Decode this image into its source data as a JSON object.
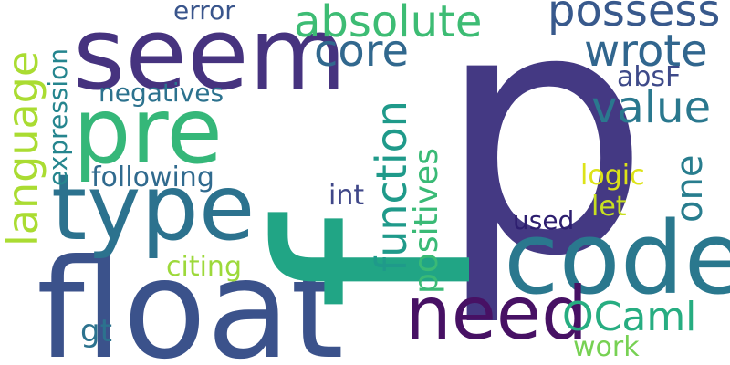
{
  "words": [
    {
      "text": "p",
      "color": "#443983"
    },
    {
      "text": "f",
      "color": "#21a585"
    },
    {
      "text": "float",
      "color": "#3b528b"
    },
    {
      "text": "seem",
      "color": "#46337f"
    },
    {
      "text": "code",
      "color": "#2a788e"
    },
    {
      "text": "pre",
      "color": "#35b779"
    },
    {
      "text": "type",
      "color": "#2c728e"
    },
    {
      "text": "need",
      "color": "#471164"
    },
    {
      "text": "absolute",
      "color": "#3dbc74"
    },
    {
      "text": "possess",
      "color": "#38598c"
    },
    {
      "text": "wrote",
      "color": "#31668e"
    },
    {
      "text": "core",
      "color": "#31688e"
    },
    {
      "text": "value",
      "color": "#2a788e"
    },
    {
      "text": "language",
      "color": "#aadc32"
    },
    {
      "text": "function",
      "color": "#1f9a8a"
    },
    {
      "text": "positives",
      "color": "#3aba76"
    },
    {
      "text": "OCaml",
      "color": "#27ad81"
    },
    {
      "text": "following",
      "color": "#306a8e"
    },
    {
      "text": "expression",
      "color": "#25858e"
    },
    {
      "text": "negatives",
      "color": "#2c728e"
    },
    {
      "text": "one",
      "color": "#287d8e"
    },
    {
      "text": "absF",
      "color": "#3e4a89"
    },
    {
      "text": "error",
      "color": "#39558c"
    },
    {
      "text": "logic",
      "color": "#dde318"
    },
    {
      "text": "let",
      "color": "#c8e020"
    },
    {
      "text": "int",
      "color": "#3f4788"
    },
    {
      "text": "used",
      "color": "#2d1e6f"
    },
    {
      "text": "citing",
      "color": "#9dd93b"
    },
    {
      "text": "gt",
      "color": "#2c728e"
    },
    {
      "text": "work",
      "color": "#77d153"
    }
  ]
}
